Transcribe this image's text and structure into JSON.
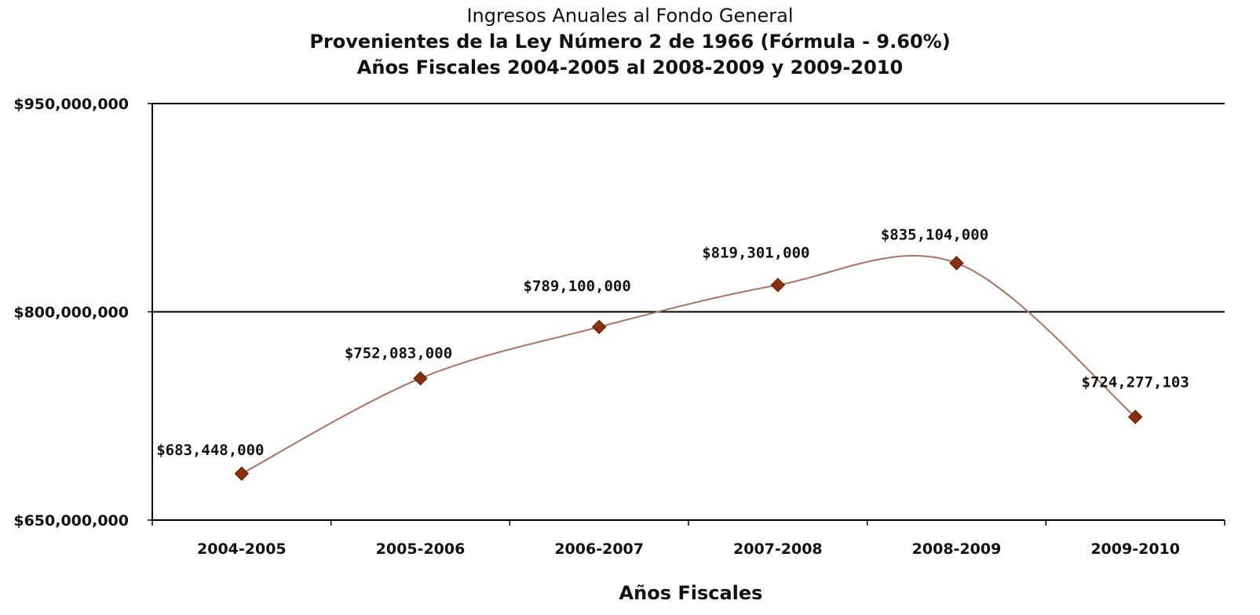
{
  "chart_data": {
    "type": "line",
    "title": "Ingresos Anuales al Fondo General",
    "subtitle_lines": [
      "Provenientes de la Ley Número 2 de 1966 (Fórmula - 9.60%)",
      "Años Fiscales 2004-2005 al 2008-2009  y  2009-2010"
    ],
    "xlabel": "Años Fiscales",
    "ylabel": "",
    "categories": [
      "2004-2005",
      "2005-2006",
      "2006-2007",
      "2007-2008",
      "2008-2009",
      "2009-2010"
    ],
    "series": [
      {
        "values": [
          683448000,
          752083000,
          789100000,
          819301000,
          835104000,
          724277103
        ],
        "labels": [
          "$683,448,000",
          "$752,083,000",
          "$789,100,000",
          "$819,301,000",
          "$835,104,000",
          "$724,277,103"
        ],
        "color": "#8B2E0A",
        "line_color": "#B0705A",
        "marker": "diamond",
        "smoothed": true
      }
    ],
    "ylim": [
      650000000,
      950000000
    ],
    "yticks": [
      650000000,
      800000000,
      950000000
    ],
    "ytick_labels": [
      "$650,000,000",
      "$800,000,000",
      "$950,000,000"
    ],
    "grid": true,
    "legend": "none"
  }
}
